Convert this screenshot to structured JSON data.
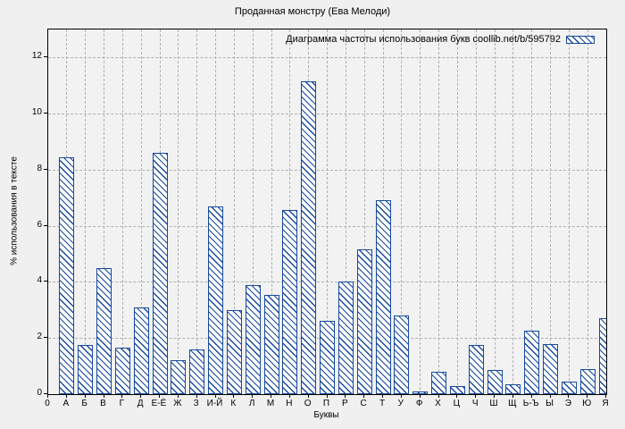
{
  "chart_data": {
    "type": "bar",
    "title": "Проданная монстру (Ева Мелоди)",
    "legend_label": "Диаграмма частоты использования букв coollib.net/b/595792",
    "legend_position": "top-right",
    "xlabel": "Буквы",
    "ylabel": "% использования в тексте",
    "x_leading_tick": "0",
    "categories": [
      "А",
      "Б",
      "В",
      "Г",
      "Д",
      "Е-Ё",
      "Ж",
      "З",
      "И-Й",
      "К",
      "Л",
      "М",
      "Н",
      "О",
      "П",
      "Р",
      "С",
      "Т",
      "У",
      "Ф",
      "Х",
      "Ц",
      "Ч",
      "Ш",
      "Щ",
      "Ь-Ъ",
      "Ы",
      "Э",
      "Ю",
      "Я"
    ],
    "values": [
      8.45,
      1.75,
      4.5,
      1.65,
      3.1,
      8.6,
      1.2,
      1.6,
      6.7,
      3.0,
      3.9,
      3.55,
      6.55,
      11.15,
      2.6,
      4.0,
      5.15,
      6.9,
      2.8,
      0.1,
      0.8,
      0.3,
      1.75,
      0.85,
      0.35,
      2.25,
      1.8,
      0.45,
      0.9,
      2.7
    ],
    "yticks": [
      0,
      2,
      4,
      6,
      8,
      10,
      12
    ],
    "ylim": [
      0,
      13
    ],
    "grid": true,
    "hatch": "\\"
  },
  "colors": {
    "bar_edge": "#17499d",
    "bar_fill": "#ffffff",
    "grid": "#b0b0b0",
    "frame": "#000000",
    "figure_bg": "#f0f0f0",
    "plot_bg": "#f2f2f2",
    "text": "#000000"
  }
}
